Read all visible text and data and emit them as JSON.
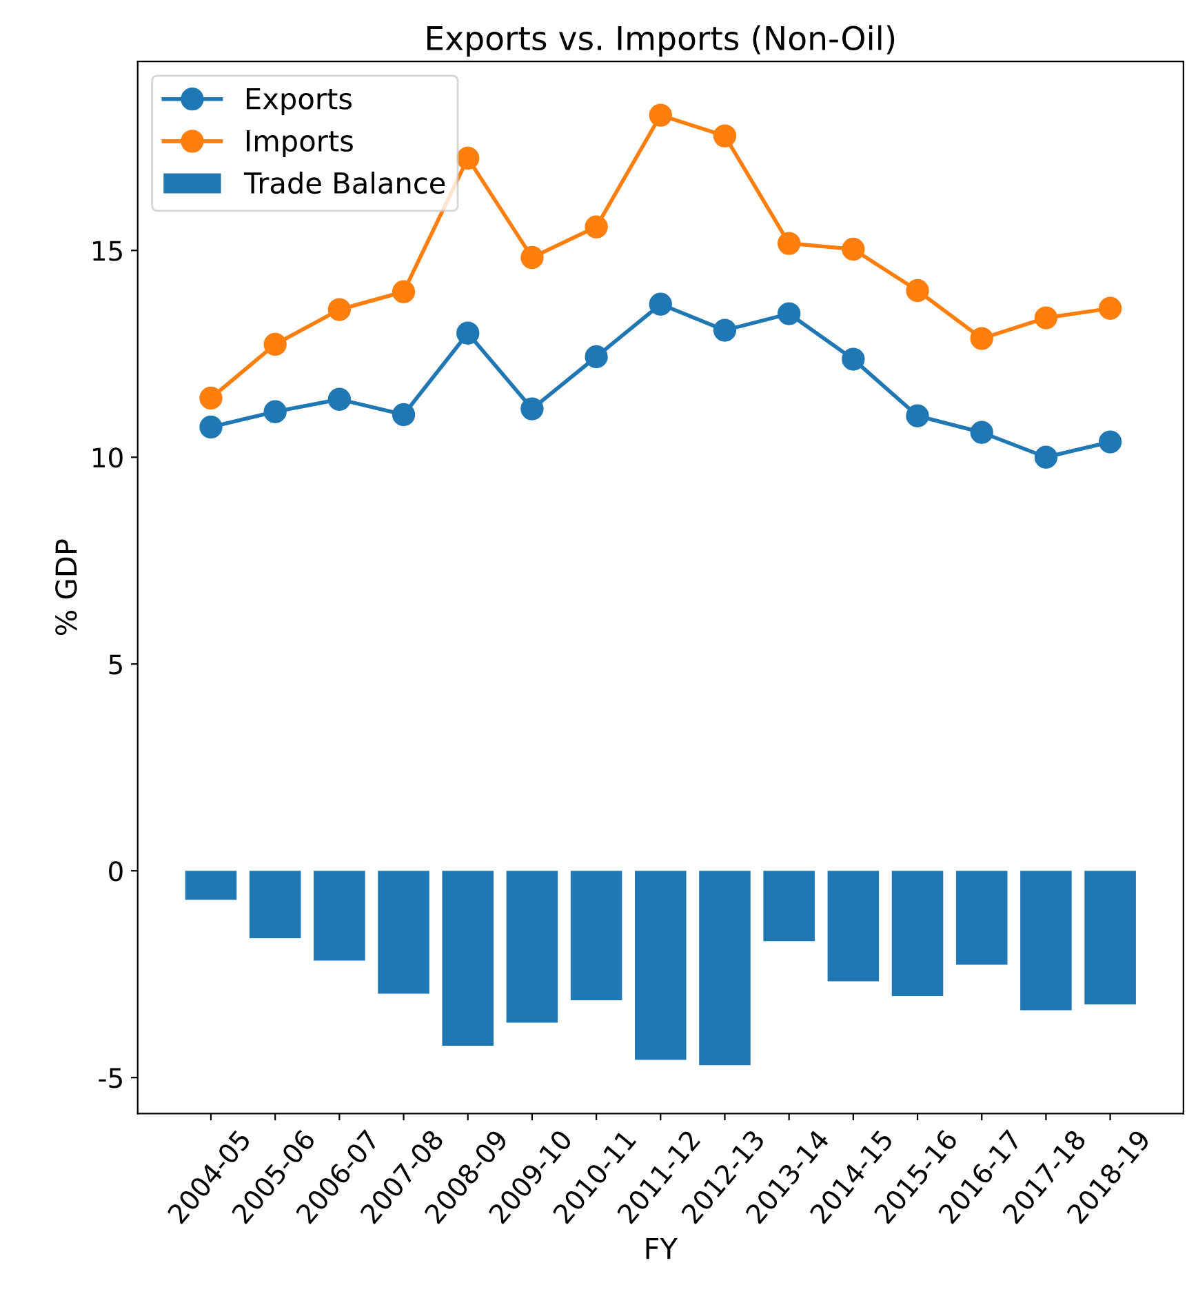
{
  "chart_data": {
    "type": "line",
    "title": "Exports vs. Imports (Non-Oil)",
    "xlabel": "FY",
    "ylabel": "% GDP",
    "categories": [
      "2004-05",
      "2005-06",
      "2006-07",
      "2007-08",
      "2008-09",
      "2009-10",
      "2010-11",
      "2011-12",
      "2012-13",
      "2013-14",
      "2014-15",
      "2015-16",
      "2016-17",
      "2017-18",
      "2018-19"
    ],
    "series": [
      {
        "name": "Exports",
        "color": "#1f77b4",
        "values": [
          10.73,
          11.1,
          11.4,
          11.03,
          13.0,
          11.17,
          12.43,
          13.7,
          13.07,
          13.47,
          12.37,
          11.0,
          10.6,
          10.0,
          10.37
        ]
      },
      {
        "name": "Imports",
        "color": "#ff7f0e",
        "values": [
          11.43,
          12.73,
          13.57,
          14.0,
          17.23,
          14.83,
          15.57,
          18.27,
          17.77,
          15.17,
          15.03,
          14.03,
          12.87,
          13.37,
          13.6
        ]
      },
      {
        "name": "Trade Balance",
        "type": "bar",
        "color": "#1f77b4",
        "values": [
          -0.7,
          -1.63,
          -2.17,
          -2.97,
          -4.23,
          -3.67,
          -3.13,
          -4.57,
          -4.7,
          -1.7,
          -2.67,
          -3.03,
          -2.27,
          -3.37,
          -3.23
        ]
      }
    ],
    "ylim": [
      -5.87,
      19.57
    ],
    "yticks": [
      -5,
      0,
      5,
      10,
      15
    ],
    "marker": "circle",
    "legend": "top left",
    "grid": false
  }
}
